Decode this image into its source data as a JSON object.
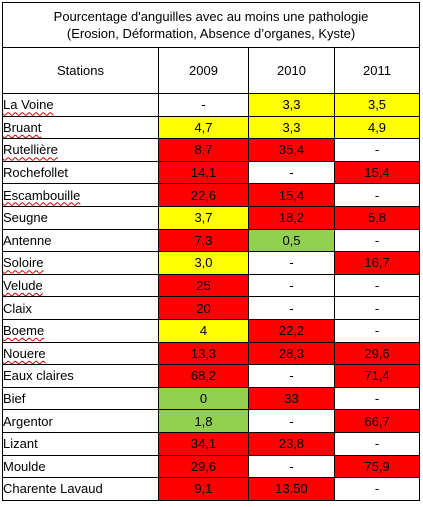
{
  "title_line1": "Pourcentage d'anguilles avec au moins une pathologie",
  "title_line2": "(Erosion, Déformation, Absence d’organes, Kyste)",
  "headers": [
    "Stations",
    "2009",
    "2010",
    "2011"
  ],
  "colors": {
    "red": "#ff0000",
    "yellow": "#ffff00",
    "green": "#92d050",
    "white": "#ffffff"
  },
  "rows": [
    {
      "station": "La Voine",
      "cells": [
        {
          "value": "-",
          "color": "white"
        },
        {
          "value": "3,3",
          "color": "yellow"
        },
        {
          "value": "3,5",
          "color": "yellow"
        }
      ]
    },
    {
      "station": "Bruant",
      "cells": [
        {
          "value": "4,7",
          "color": "yellow"
        },
        {
          "value": "3,3",
          "color": "yellow"
        },
        {
          "value": "4,9",
          "color": "yellow"
        }
      ]
    },
    {
      "station": "Rutellière",
      "cells": [
        {
          "value": "8,7",
          "color": "red"
        },
        {
          "value": "35,4",
          "color": "red"
        },
        {
          "value": "-",
          "color": "white"
        }
      ]
    },
    {
      "station": "Rochefollet",
      "cells": [
        {
          "value": "14,1",
          "color": "red"
        },
        {
          "value": "-",
          "color": "white"
        },
        {
          "value": "15,4",
          "color": "red"
        }
      ]
    },
    {
      "station": "Escambouille",
      "cells": [
        {
          "value": "22,6",
          "color": "red"
        },
        {
          "value": "15,4",
          "color": "red"
        },
        {
          "value": "-",
          "color": "white"
        }
      ]
    },
    {
      "station": "Seugne",
      "cells": [
        {
          "value": "3,7",
          "color": "yellow"
        },
        {
          "value": "18,2",
          "color": "red"
        },
        {
          "value": "5,8",
          "color": "red"
        }
      ]
    },
    {
      "station": "Antenne",
      "cells": [
        {
          "value": "7,3",
          "color": "red"
        },
        {
          "value": "0,5",
          "color": "green"
        },
        {
          "value": "-",
          "color": "white"
        }
      ]
    },
    {
      "station": "Soloire",
      "cells": [
        {
          "value": "3,0",
          "color": "yellow"
        },
        {
          "value": "-",
          "color": "white"
        },
        {
          "value": "16,7",
          "color": "red"
        }
      ]
    },
    {
      "station": "Velude",
      "cells": [
        {
          "value": "25",
          "color": "red"
        },
        {
          "value": "-",
          "color": "white"
        },
        {
          "value": "-",
          "color": "white"
        }
      ]
    },
    {
      "station": "Claix",
      "cells": [
        {
          "value": "20",
          "color": "red"
        },
        {
          "value": "-",
          "color": "white"
        },
        {
          "value": "-",
          "color": "white"
        }
      ]
    },
    {
      "station": "Boeme",
      "cells": [
        {
          "value": "4",
          "color": "yellow"
        },
        {
          "value": "22,2",
          "color": "red"
        },
        {
          "value": "-",
          "color": "white"
        }
      ]
    },
    {
      "station": "Nouere",
      "cells": [
        {
          "value": "13,3",
          "color": "red"
        },
        {
          "value": "28,3",
          "color": "red"
        },
        {
          "value": "29,6",
          "color": "red"
        }
      ]
    },
    {
      "station": "Eaux claires",
      "cells": [
        {
          "value": "68,2",
          "color": "red"
        },
        {
          "value": "-",
          "color": "white"
        },
        {
          "value": "71,4",
          "color": "red"
        }
      ]
    },
    {
      "station": "Bief",
      "cells": [
        {
          "value": "0",
          "color": "green"
        },
        {
          "value": "33",
          "color": "red"
        },
        {
          "value": "-",
          "color": "white"
        }
      ]
    },
    {
      "station": "Argentor",
      "cells": [
        {
          "value": "1,8",
          "color": "green"
        },
        {
          "value": "-",
          "color": "white"
        },
        {
          "value": "66,7",
          "color": "red"
        }
      ]
    },
    {
      "station": "Lizant",
      "cells": [
        {
          "value": "34,1",
          "color": "red"
        },
        {
          "value": "23,8",
          "color": "red"
        },
        {
          "value": "-",
          "color": "white"
        }
      ]
    },
    {
      "station": "Moulde",
      "cells": [
        {
          "value": "29,6",
          "color": "red"
        },
        {
          "value": "-",
          "color": "white"
        },
        {
          "value": "75,9",
          "color": "red"
        }
      ]
    },
    {
      "station": "Charente Lavaud",
      "cells": [
        {
          "value": "9,1",
          "color": "red"
        },
        {
          "value": "13,50",
          "color": "red"
        },
        {
          "value": "-",
          "color": "white"
        }
      ]
    }
  ]
}
